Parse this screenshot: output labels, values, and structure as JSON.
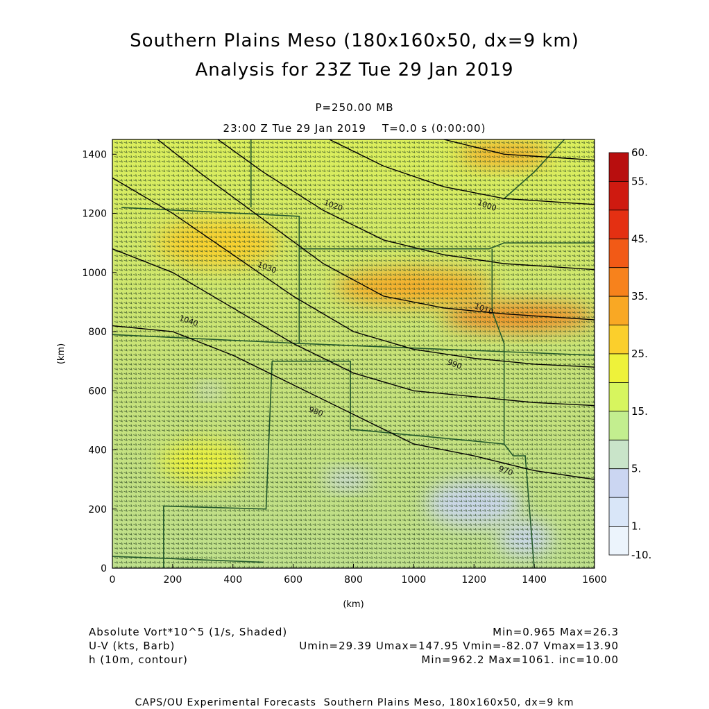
{
  "header": {
    "title_line1": "Southern Plains Meso (180x160x50, dx=9 km)",
    "title_line2": "Analysis for 23Z Tue 29 Jan 2019",
    "level": "P=250.00 MB",
    "time": "23:00 Z Tue 29 Jan 2019    T=0.0 s (0:00:00)"
  },
  "chart_data": {
    "type": "heatmap",
    "xlabel": "(km)",
    "ylabel": "(km)",
    "xlim": [
      0,
      1600
    ],
    "ylim": [
      0,
      1450
    ],
    "xticks": [
      "0",
      "200",
      "400",
      "600",
      "800",
      "1000",
      "1200",
      "1400",
      "1600"
    ],
    "yticks": [
      "0",
      "200",
      "400",
      "600",
      "800",
      "1000",
      "1200",
      "1400"
    ],
    "colorbar": {
      "labels": [
        "60.",
        "55.",
        "45.",
        "35.",
        "25.",
        "15.",
        "5.",
        "1.",
        "-10."
      ],
      "colors": [
        "#b80e0e",
        "#cf1a10",
        "#e43012",
        "#f25a16",
        "#f7821c",
        "#f9a824",
        "#fbcf2c",
        "#eef23a",
        "#d7f55e",
        "#c3ee8f",
        "#c9e4c9",
        "#cbd6f2",
        "#d9e6f8",
        "#ecf4fc"
      ]
    },
    "contour_labels": [
      "1040",
      "1030",
      "1020",
      "1010",
      "1000",
      "990",
      "980",
      "970"
    ],
    "contour_lines": [
      {
        "label": "1040",
        "points": [
          [
            0,
            820
          ],
          [
            200,
            800
          ],
          [
            400,
            720
          ],
          [
            600,
            620
          ],
          [
            800,
            520
          ],
          [
            1000,
            420
          ],
          [
            1200,
            380
          ],
          [
            1400,
            330
          ],
          [
            1600,
            300
          ]
        ]
      },
      {
        "label": "1030",
        "points": [
          [
            0,
            1080
          ],
          [
            200,
            1000
          ],
          [
            400,
            880
          ],
          [
            600,
            760
          ],
          [
            800,
            660
          ],
          [
            1000,
            600
          ],
          [
            1200,
            580
          ],
          [
            1400,
            560
          ],
          [
            1600,
            550
          ]
        ]
      },
      {
        "label": "1020",
        "points": [
          [
            0,
            1320
          ],
          [
            200,
            1200
          ],
          [
            400,
            1060
          ],
          [
            600,
            920
          ],
          [
            800,
            800
          ],
          [
            1000,
            740
          ],
          [
            1200,
            710
          ],
          [
            1400,
            690
          ],
          [
            1600,
            680
          ]
        ]
      },
      {
        "label": "1010",
        "points": [
          [
            150,
            1450
          ],
          [
            300,
            1330
          ],
          [
            500,
            1180
          ],
          [
            700,
            1030
          ],
          [
            900,
            920
          ],
          [
            1100,
            880
          ],
          [
            1300,
            860
          ],
          [
            1600,
            840
          ]
        ]
      },
      {
        "label": "1000",
        "points": [
          [
            350,
            1450
          ],
          [
            500,
            1340
          ],
          [
            700,
            1210
          ],
          [
            900,
            1110
          ],
          [
            1100,
            1060
          ],
          [
            1300,
            1030
          ],
          [
            1600,
            1010
          ]
        ]
      },
      {
        "label": "990",
        "points": [
          [
            720,
            1450
          ],
          [
            900,
            1360
          ],
          [
            1100,
            1290
          ],
          [
            1300,
            1250
          ],
          [
            1600,
            1230
          ]
        ]
      },
      {
        "label": "980",
        "points": [
          [
            1100,
            1450
          ],
          [
            1300,
            1400
          ],
          [
            1600,
            1380
          ]
        ]
      }
    ],
    "vorticity_blobs": [
      {
        "x": 1000,
        "y": 950,
        "rx": 260,
        "ry": 60,
        "value": 22
      },
      {
        "x": 1350,
        "y": 850,
        "rx": 250,
        "ry": 45,
        "value": 25
      },
      {
        "x": 1300,
        "y": 1400,
        "rx": 150,
        "ry": 40,
        "value": 20
      },
      {
        "x": 350,
        "y": 1100,
        "rx": 200,
        "ry": 80,
        "value": 17
      },
      {
        "x": 1200,
        "y": 220,
        "rx": 160,
        "ry": 80,
        "value": 2
      },
      {
        "x": 1370,
        "y": 100,
        "rx": 90,
        "ry": 60,
        "value": 2
      },
      {
        "x": 780,
        "y": 300,
        "rx": 80,
        "ry": 30,
        "value": 2
      },
      {
        "x": 320,
        "y": 600,
        "rx": 40,
        "ry": 20,
        "value": 2
      },
      {
        "x": 300,
        "y": 360,
        "rx": 140,
        "ry": 70,
        "value": 12
      }
    ],
    "contour_label_points": [
      {
        "text": "1040",
        "x": 220,
        "y": 840
      },
      {
        "text": "1030",
        "x": 480,
        "y": 1020
      },
      {
        "text": "1020",
        "x": 700,
        "y": 1230
      },
      {
        "text": "1010",
        "x": 1200,
        "y": 880
      },
      {
        "text": "1000",
        "x": 1210,
        "y": 1230
      },
      {
        "text": "990",
        "x": 1110,
        "y": 690
      },
      {
        "text": "980",
        "x": 650,
        "y": 530
      },
      {
        "text": "970",
        "x": 1280,
        "y": 330
      }
    ]
  },
  "footer": {
    "var1_label": "Absolute Vort*10^5 (1/s, Shaded)",
    "var1_stats": "Min=0.965 Max=26.3",
    "var2_label": "U-V (kts, Barb)",
    "var2_stats": "Umin=29.39 Umax=147.95 Vmin=-82.07 Vmax=13.90",
    "var3_label": "h (10m, contour)",
    "var3_stats": "Min=962.2 Max=1061. inc=10.00",
    "credit": "CAPS/OU Experimental Forecasts  Southern Plains Meso, 180x160x50, dx=9 km"
  }
}
